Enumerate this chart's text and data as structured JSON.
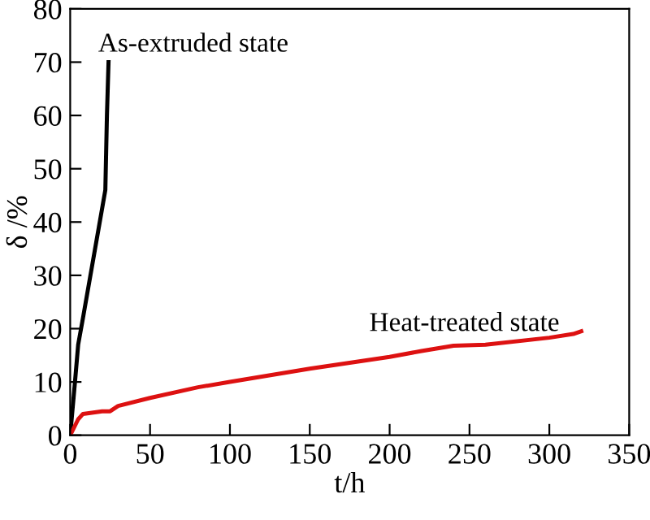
{
  "chart_data": {
    "type": "line",
    "xlabel": "t/h",
    "ylabel": "δ /%",
    "xlim": [
      0,
      350
    ],
    "xticks": [
      0,
      50,
      100,
      150,
      200,
      250,
      300,
      350
    ],
    "ylim": [
      0,
      80
    ],
    "yticks": [
      0,
      10,
      20,
      30,
      40,
      50,
      60,
      70,
      80
    ],
    "grid": false,
    "legend": false,
    "marker": "none",
    "line_style": "solid",
    "series": [
      {
        "color": "#000000",
        "x": [
          0,
          3,
          5,
          8,
          22,
          23,
          24
        ],
        "values": [
          0,
          10,
          17,
          22,
          46,
          60,
          70
        ]
      },
      {
        "color": "#dd1111",
        "x": [
          0,
          5,
          8,
          20,
          25,
          30,
          50,
          80,
          100,
          150,
          200,
          220,
          240,
          260,
          300,
          315,
          320
        ],
        "values": [
          0,
          3,
          4,
          4.5,
          4.5,
          5.5,
          7,
          9,
          10,
          12.5,
          14.7,
          15.8,
          16.8,
          17,
          18.3,
          19,
          19.5
        ]
      }
    ],
    "annotations": [
      "As-extruded state",
      "Heat-treated state"
    ]
  }
}
